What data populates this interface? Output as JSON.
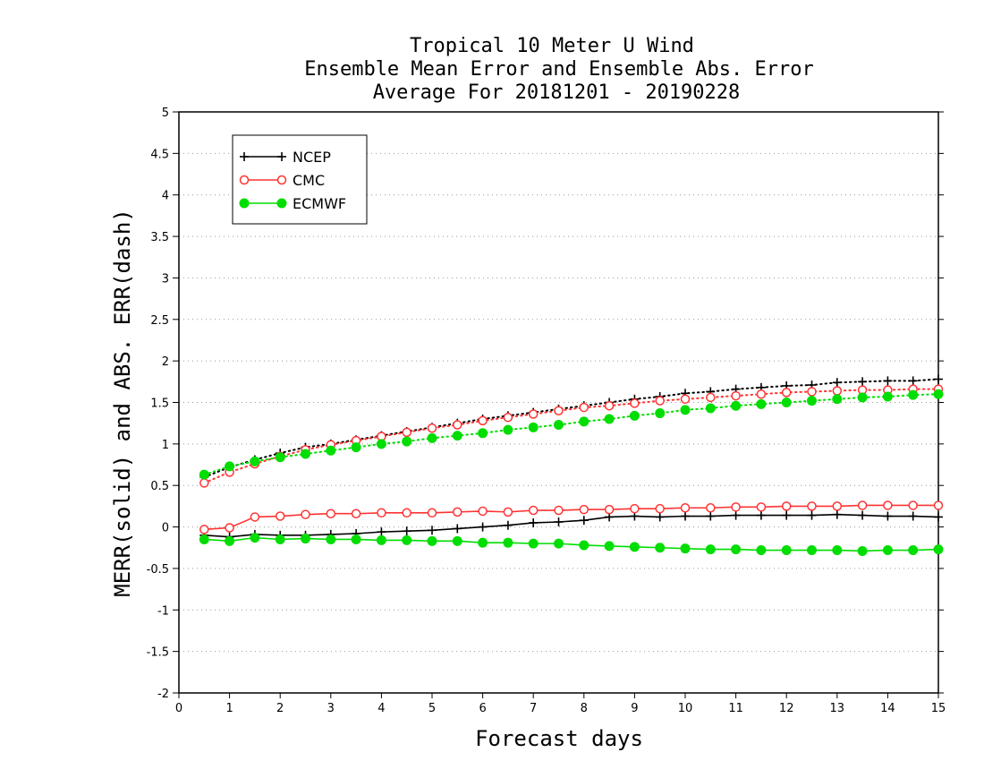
{
  "chart_data": {
    "type": "line",
    "title_lines": [
      "Tropical 10 Meter U Wind",
      "Ensemble Mean Error and Ensemble Abs. Error",
      "Average For 20181201 - 20190228"
    ],
    "xlabel": "Forecast days",
    "ylabel": "MERR(solid) and ABS. ERR(dash)",
    "xlim": [
      0,
      15
    ],
    "ylim": [
      -2,
      5
    ],
    "xticks": [
      0,
      1,
      2,
      3,
      4,
      5,
      6,
      7,
      8,
      9,
      10,
      11,
      12,
      13,
      14,
      15
    ],
    "yticks": [
      -2,
      -1.5,
      -1,
      -0.5,
      0,
      0.5,
      1,
      1.5,
      2,
      2.5,
      3,
      3.5,
      4,
      4.5,
      5
    ],
    "ytick_labels": [
      "-2",
      "-1.5",
      "-1",
      "-0.5",
      "0",
      "0.5",
      "1",
      "1.5",
      "2",
      "2.5",
      "3",
      "3.5",
      "4",
      "4.5",
      "5"
    ],
    "grid": "horizontal dotted",
    "legend_position": "top-left",
    "x": [
      0.5,
      1,
      1.5,
      2,
      2.5,
      3,
      3.5,
      4,
      4.5,
      5,
      5.5,
      6,
      6.5,
      7,
      7.5,
      8,
      8.5,
      9,
      9.5,
      10,
      10.5,
      11,
      11.5,
      12,
      12.5,
      13,
      13.5,
      14,
      14.5,
      15
    ],
    "series": [
      {
        "name": "NCEP",
        "color": "#000000",
        "marker": "plus",
        "mean_error": [
          -0.1,
          -0.12,
          -0.09,
          -0.1,
          -0.1,
          -0.09,
          -0.08,
          -0.06,
          -0.05,
          -0.04,
          -0.02,
          0.0,
          0.02,
          0.05,
          0.06,
          0.08,
          0.12,
          0.13,
          0.12,
          0.13,
          0.13,
          0.14,
          0.14,
          0.14,
          0.14,
          0.15,
          0.14,
          0.13,
          0.13,
          0.12
        ],
        "abs_error": [
          0.6,
          0.72,
          0.81,
          0.89,
          0.96,
          1.0,
          1.05,
          1.1,
          1.15,
          1.2,
          1.25,
          1.3,
          1.34,
          1.38,
          1.42,
          1.46,
          1.5,
          1.54,
          1.57,
          1.61,
          1.63,
          1.66,
          1.68,
          1.7,
          1.71,
          1.74,
          1.75,
          1.76,
          1.76,
          1.78
        ]
      },
      {
        "name": "CMC",
        "color": "#ff3333",
        "marker": "open-circle",
        "mean_error": [
          -0.03,
          -0.01,
          0.12,
          0.13,
          0.15,
          0.16,
          0.16,
          0.17,
          0.17,
          0.17,
          0.18,
          0.19,
          0.18,
          0.2,
          0.2,
          0.21,
          0.21,
          0.22,
          0.22,
          0.23,
          0.23,
          0.24,
          0.24,
          0.25,
          0.25,
          0.25,
          0.26,
          0.26,
          0.26,
          0.26
        ],
        "abs_error": [
          0.53,
          0.66,
          0.76,
          0.85,
          0.93,
          0.99,
          1.04,
          1.09,
          1.14,
          1.19,
          1.23,
          1.28,
          1.32,
          1.36,
          1.4,
          1.44,
          1.46,
          1.49,
          1.52,
          1.54,
          1.56,
          1.58,
          1.6,
          1.62,
          1.63,
          1.64,
          1.65,
          1.65,
          1.66,
          1.66
        ]
      },
      {
        "name": "ECMWF",
        "color": "#00dd00",
        "marker": "filled-circle",
        "mean_error": [
          -0.15,
          -0.17,
          -0.13,
          -0.15,
          -0.14,
          -0.15,
          -0.15,
          -0.16,
          -0.16,
          -0.17,
          -0.17,
          -0.19,
          -0.19,
          -0.2,
          -0.2,
          -0.22,
          -0.23,
          -0.24,
          -0.25,
          -0.26,
          -0.27,
          -0.27,
          -0.28,
          -0.28,
          -0.28,
          -0.28,
          -0.29,
          -0.28,
          -0.28,
          -0.27
        ],
        "abs_error": [
          0.63,
          0.73,
          0.79,
          0.84,
          0.88,
          0.92,
          0.96,
          1.0,
          1.03,
          1.07,
          1.1,
          1.13,
          1.17,
          1.2,
          1.23,
          1.27,
          1.3,
          1.34,
          1.37,
          1.41,
          1.43,
          1.46,
          1.48,
          1.5,
          1.52,
          1.54,
          1.56,
          1.57,
          1.59,
          1.6
        ]
      }
    ]
  }
}
